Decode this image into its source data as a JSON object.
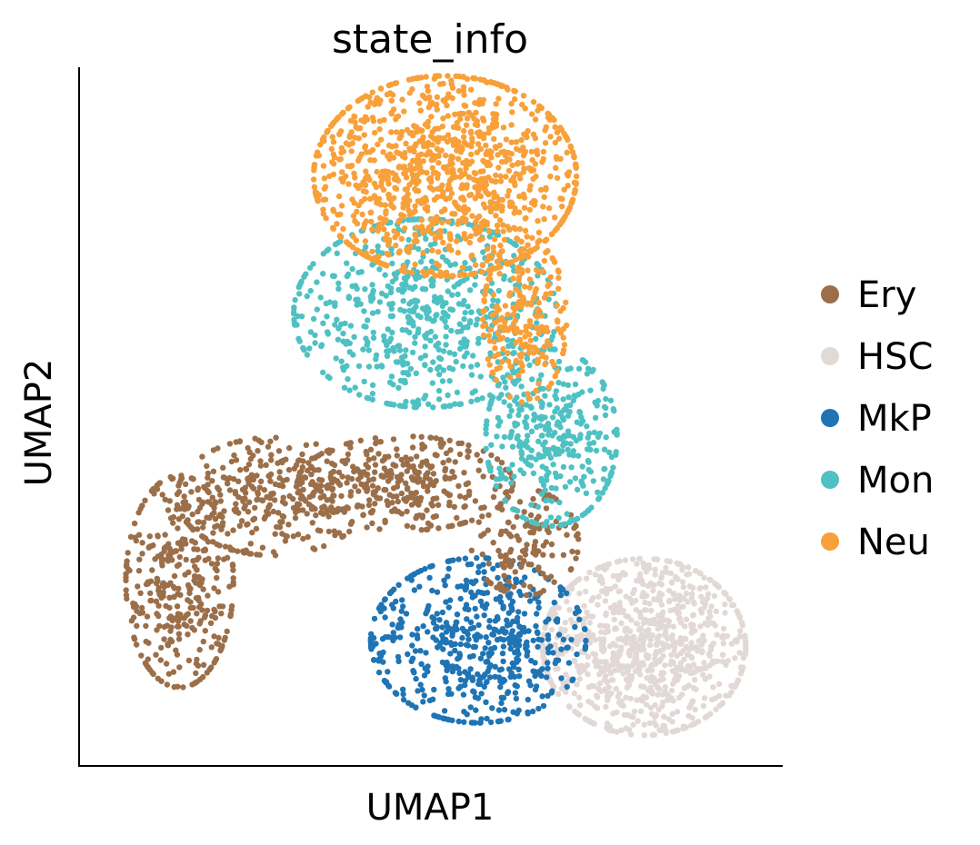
{
  "chart_data": {
    "type": "scatter",
    "title": "state_info",
    "xlabel": "UMAP1",
    "ylabel": "UMAP2",
    "grid": false,
    "ticks": false,
    "legend_position": "right",
    "xlim": [
      0,
      10
    ],
    "ylim": [
      0,
      10
    ],
    "series": [
      {
        "name": "Ery",
        "color": "#9b6f49"
      },
      {
        "name": "HSC",
        "color": "#e2d9d6"
      },
      {
        "name": "MkP",
        "color": "#1f74b4"
      },
      {
        "name": "Mon",
        "color": "#4fc1c3"
      },
      {
        "name": "Neu",
        "color": "#f8a03a"
      }
    ],
    "clusters": [
      {
        "series": "Neu",
        "cx": 5.2,
        "cy": 8.7,
        "sx": 1.1,
        "sy": 0.85,
        "n": 1100
      },
      {
        "series": "Neu",
        "cx": 6.4,
        "cy": 6.5,
        "sx": 0.35,
        "sy": 0.7,
        "n": 220
      },
      {
        "series": "Mon",
        "cx": 4.9,
        "cy": 6.6,
        "sx": 1.1,
        "sy": 0.8,
        "n": 650
      },
      {
        "series": "Mon",
        "cx": 6.8,
        "cy": 4.7,
        "sx": 0.55,
        "sy": 0.75,
        "n": 360
      },
      {
        "series": "Ery",
        "cx": 1.2,
        "cy": 2.5,
        "sx": 0.45,
        "sy": 0.9,
        "n": 360
      },
      {
        "series": "Ery",
        "cx": 2.6,
        "cy": 3.8,
        "sx": 0.8,
        "sy": 0.5,
        "n": 320
      },
      {
        "series": "Ery",
        "cx": 4.6,
        "cy": 4.0,
        "sx": 0.9,
        "sy": 0.4,
        "n": 330
      },
      {
        "series": "Ery",
        "cx": 6.4,
        "cy": 3.1,
        "sx": 0.45,
        "sy": 0.45,
        "n": 140
      },
      {
        "series": "MkP",
        "cx": 5.7,
        "cy": 1.6,
        "sx": 0.9,
        "sy": 0.7,
        "n": 560
      },
      {
        "series": "HSC",
        "cx": 8.2,
        "cy": 1.5,
        "sx": 0.85,
        "sy": 0.75,
        "n": 900
      }
    ]
  }
}
